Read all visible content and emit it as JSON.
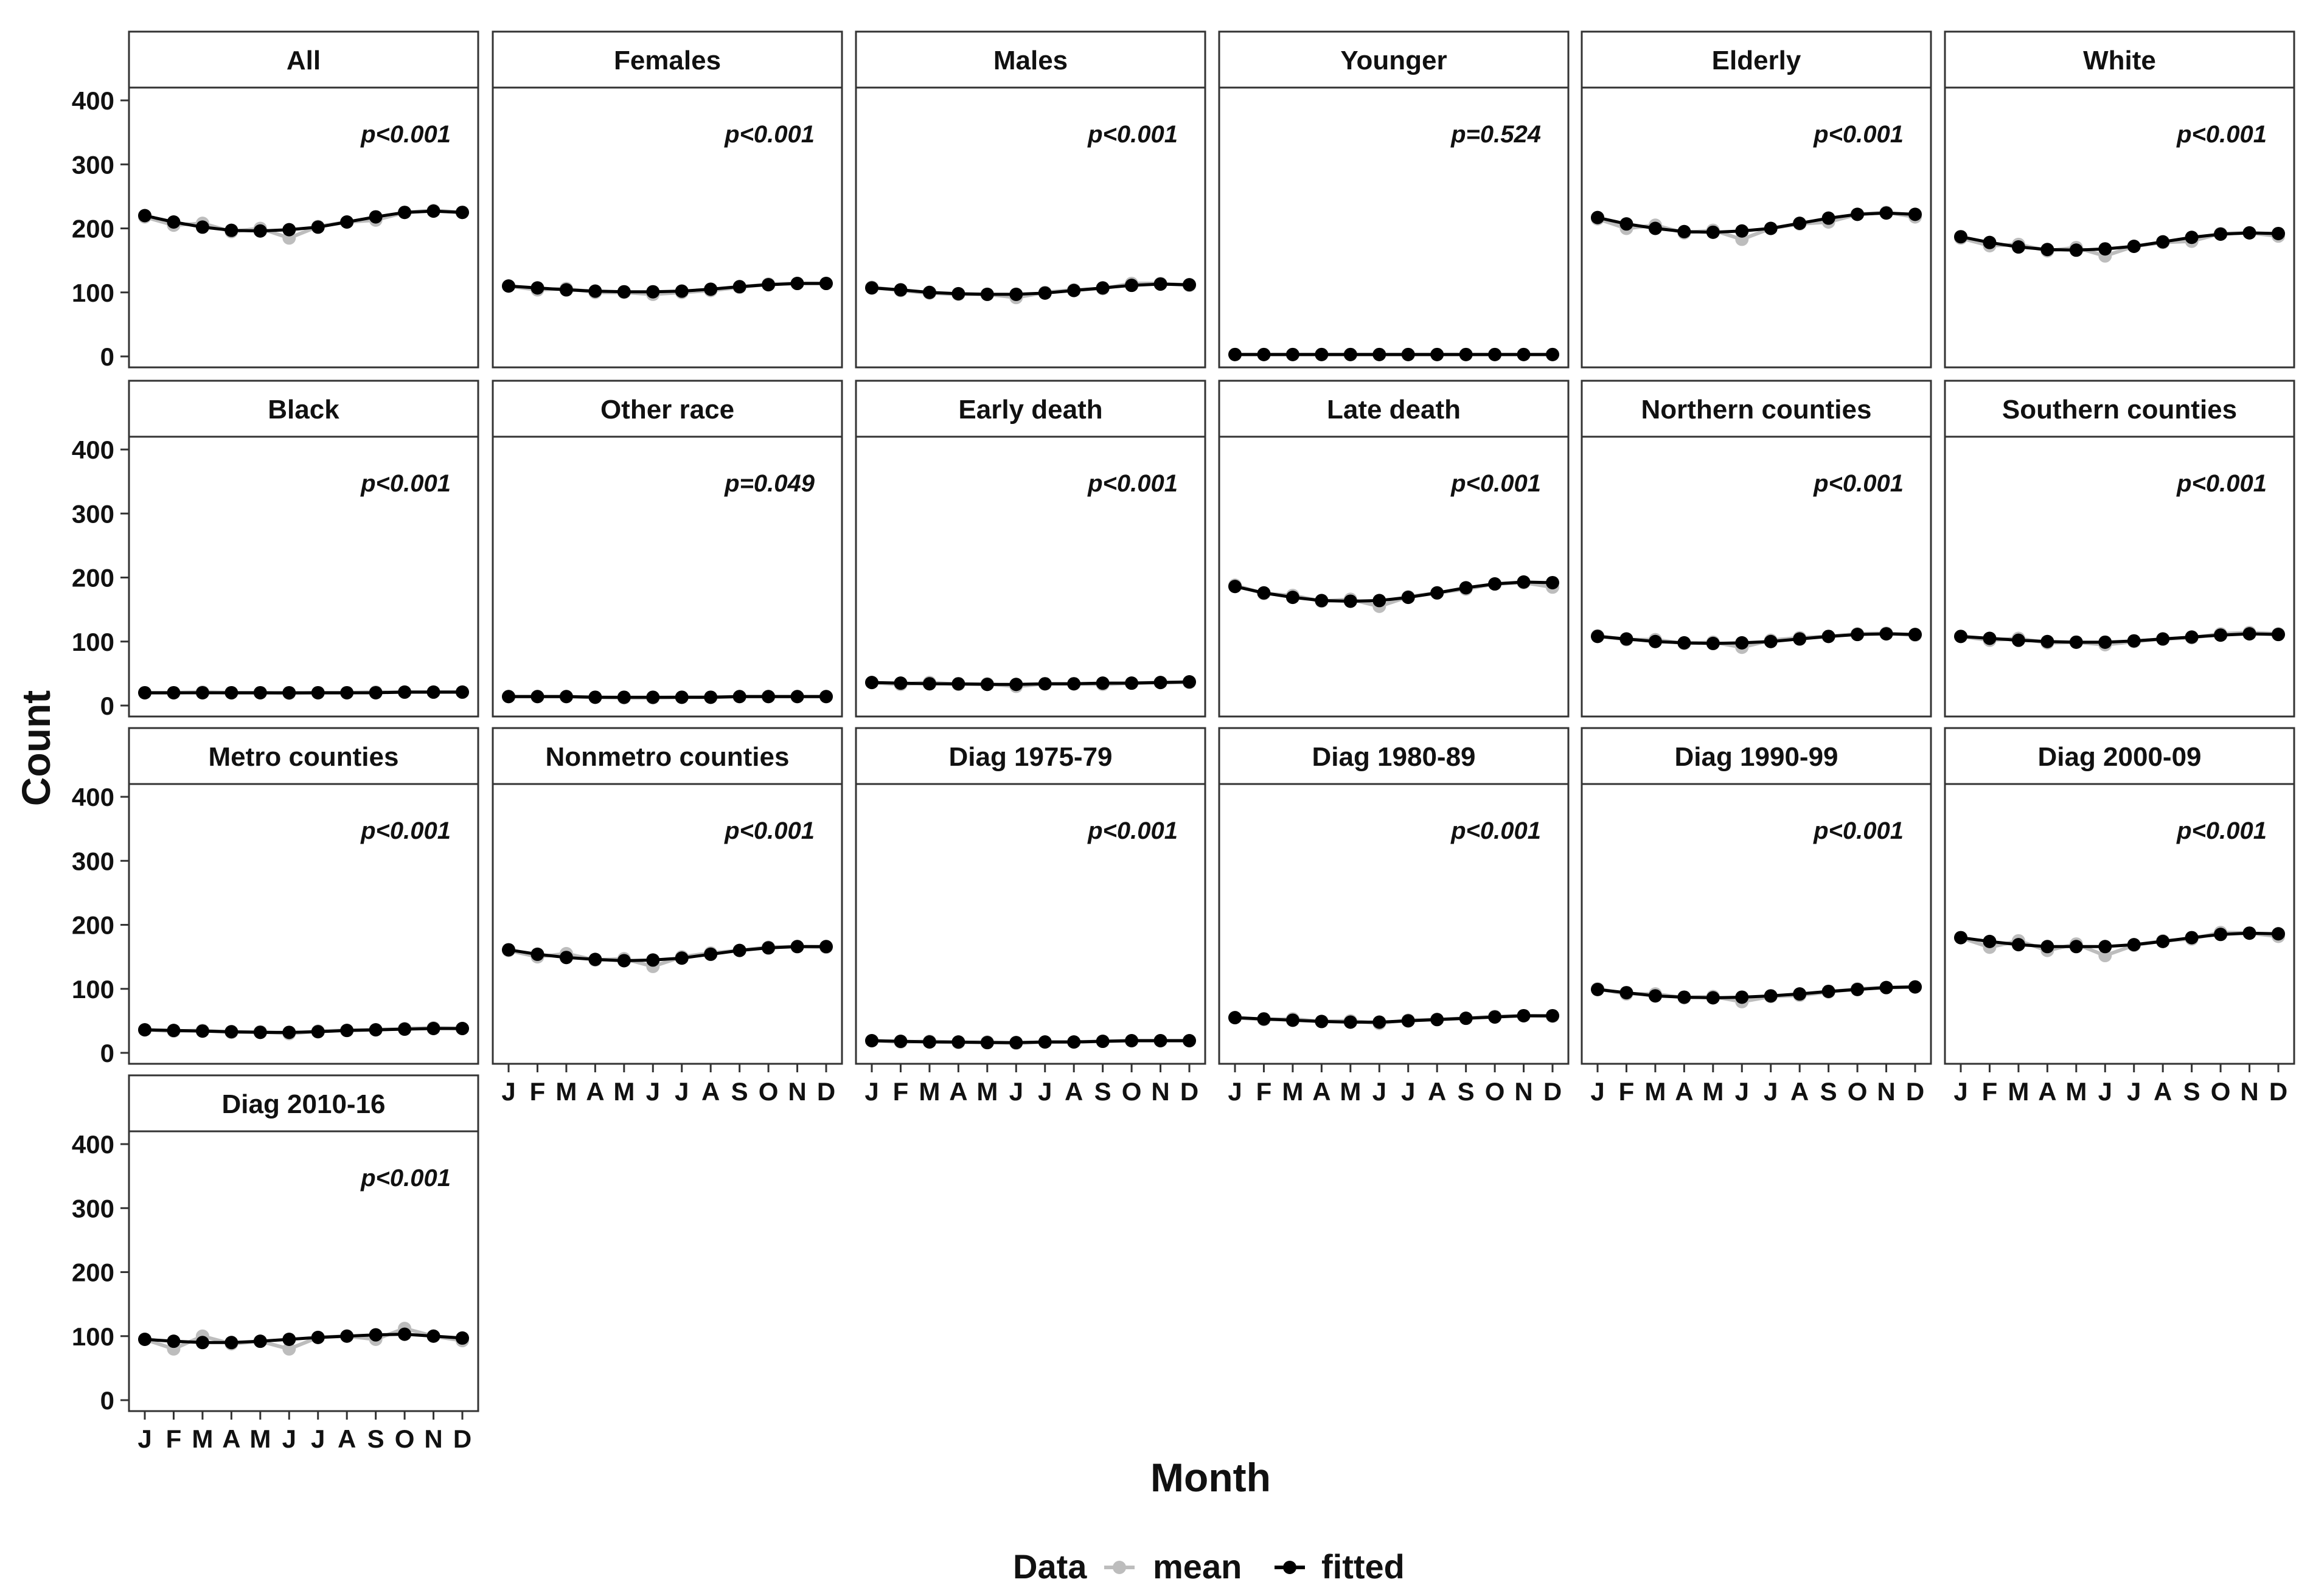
{
  "chart_data": {
    "type": "line",
    "xlabel": "Month",
    "ylabel": "Count",
    "ylim": [
      0,
      420
    ],
    "y_ticks": [
      0,
      100,
      200,
      300,
      400
    ],
    "x_ticks": [
      "J",
      "F",
      "M",
      "A",
      "M",
      "J",
      "J",
      "A",
      "S",
      "O",
      "N",
      "D"
    ],
    "grid": false,
    "legend": {
      "title": "Data",
      "placement": "bottom",
      "entries": [
        {
          "name": "mean",
          "color": "#bdbdbd"
        },
        {
          "name": "fitted",
          "color": "#000000"
        }
      ]
    },
    "panels": [
      {
        "title": "All",
        "p": "p<0.001",
        "mean": [
          218,
          205,
          208,
          195,
          200,
          185,
          203,
          210,
          213,
          225,
          228,
          225
        ],
        "fitted": [
          220,
          210,
          202,
          197,
          196,
          198,
          202,
          210,
          218,
          225,
          227,
          225
        ]
      },
      {
        "title": "Females",
        "p": "p<0.001",
        "mean": [
          110,
          104,
          106,
          100,
          100,
          97,
          100,
          103,
          108,
          113,
          114,
          114
        ],
        "fitted": [
          110,
          107,
          104,
          102,
          101,
          101,
          102,
          105,
          109,
          112,
          114,
          114
        ]
      },
      {
        "title": "Males",
        "p": "p<0.001",
        "mean": [
          108,
          103,
          99,
          97,
          97,
          92,
          100,
          104,
          106,
          114,
          114,
          111
        ],
        "fitted": [
          107,
          104,
          100,
          98,
          97,
          97,
          99,
          103,
          107,
          111,
          113,
          112
        ]
      },
      {
        "title": "Younger",
        "p": "p=0.524",
        "mean": [
          3,
          3,
          3,
          3,
          3,
          3,
          3,
          3,
          3,
          3,
          3,
          3
        ],
        "fitted": [
          3,
          3,
          3,
          3,
          3,
          3,
          3,
          3,
          3,
          3,
          3,
          3
        ]
      },
      {
        "title": "Elderly",
        "p": "p<0.001",
        "mean": [
          215,
          200,
          205,
          193,
          197,
          183,
          200,
          207,
          210,
          222,
          225,
          218
        ],
        "fitted": [
          217,
          207,
          200,
          195,
          194,
          196,
          200,
          208,
          216,
          222,
          224,
          222
        ]
      },
      {
        "title": "White",
        "p": "p<0.001",
        "mean": [
          185,
          173,
          175,
          165,
          170,
          157,
          172,
          178,
          180,
          192,
          193,
          188
        ],
        "fitted": [
          187,
          178,
          171,
          167,
          166,
          168,
          172,
          179,
          186,
          191,
          193,
          192
        ]
      },
      {
        "title": "Black",
        "p": "p<0.001",
        "mean": [
          20,
          20,
          21,
          20,
          20,
          19,
          20,
          20,
          21,
          21,
          21,
          21
        ],
        "fitted": [
          20,
          20,
          20,
          20,
          20,
          20,
          20,
          20,
          20,
          21,
          21,
          21
        ]
      },
      {
        "title": "Other race",
        "p": "p=0.049",
        "mean": [
          14,
          14,
          14,
          13,
          12,
          12,
          13,
          13,
          14,
          14,
          14,
          14
        ],
        "fitted": [
          14,
          14,
          14,
          13,
          13,
          13,
          13,
          13,
          14,
          14,
          14,
          14
        ]
      },
      {
        "title": "Early death",
        "p": "p<0.001",
        "mean": [
          36,
          33,
          36,
          33,
          34,
          30,
          34,
          34,
          33,
          35,
          36,
          36
        ],
        "fitted": [
          36,
          35,
          34,
          34,
          33,
          33,
          34,
          34,
          35,
          35,
          36,
          37
        ]
      },
      {
        "title": "Late death",
        "p": "p<0.001",
        "mean": [
          188,
          175,
          172,
          163,
          166,
          155,
          170,
          176,
          182,
          190,
          192,
          185
        ],
        "fitted": [
          186,
          176,
          169,
          164,
          163,
          164,
          169,
          176,
          184,
          190,
          193,
          192
        ]
      },
      {
        "title": "Northern counties",
        "p": "p<0.001",
        "mean": [
          109,
          103,
          103,
          97,
          99,
          91,
          102,
          106,
          108,
          112,
          113,
          110
        ],
        "fitted": [
          108,
          104,
          100,
          98,
          97,
          98,
          100,
          104,
          108,
          111,
          112,
          111
        ]
      },
      {
        "title": "Southern counties",
        "p": "p<0.001",
        "mean": [
          108,
          102,
          105,
          98,
          99,
          95,
          100,
          104,
          106,
          112,
          114,
          112
        ],
        "fitted": [
          108,
          105,
          102,
          100,
          99,
          99,
          101,
          104,
          107,
          110,
          112,
          111
        ]
      },
      {
        "title": "Metro counties",
        "p": "p<0.001",
        "mean": [
          36,
          34,
          35,
          32,
          33,
          30,
          34,
          35,
          36,
          38,
          39,
          38
        ],
        "fitted": [
          36,
          35,
          34,
          33,
          32,
          32,
          33,
          35,
          36,
          37,
          38,
          38
        ]
      },
      {
        "title": "Nonmetro counties",
        "p": "p<0.001",
        "mean": [
          160,
          150,
          155,
          145,
          147,
          135,
          150,
          156,
          160,
          165,
          166,
          165
        ],
        "fitted": [
          161,
          154,
          149,
          146,
          144,
          145,
          148,
          154,
          160,
          164,
          166,
          166
        ]
      },
      {
        "title": "Diag 1975-79",
        "p": "p<0.001",
        "mean": [
          19,
          17,
          18,
          16,
          17,
          15,
          17,
          17,
          18,
          19,
          19,
          19
        ],
        "fitted": [
          19,
          18,
          17,
          17,
          16,
          16,
          17,
          17,
          18,
          19,
          19,
          19
        ]
      },
      {
        "title": "Diag 1980-89",
        "p": "p<0.001",
        "mean": [
          55,
          52,
          53,
          49,
          50,
          46,
          51,
          52,
          54,
          57,
          58,
          57
        ],
        "fitted": [
          55,
          53,
          51,
          49,
          48,
          48,
          50,
          52,
          54,
          56,
          58,
          58
        ]
      },
      {
        "title": "Diag 1990-99",
        "p": "p<0.001",
        "mean": [
          100,
          92,
          92,
          86,
          88,
          80,
          88,
          90,
          95,
          100,
          102,
          103
        ],
        "fitted": [
          99,
          94,
          89,
          87,
          86,
          87,
          89,
          92,
          96,
          99,
          102,
          103
        ]
      },
      {
        "title": "Diag 2000-09",
        "p": "p<0.001",
        "mean": [
          180,
          165,
          175,
          160,
          170,
          152,
          168,
          175,
          178,
          188,
          187,
          182
        ],
        "fitted": [
          180,
          174,
          169,
          166,
          166,
          166,
          169,
          174,
          180,
          185,
          187,
          186
        ]
      },
      {
        "title": "Diag 2010-16",
        "p": "p<0.001",
        "mean": [
          95,
          80,
          100,
          88,
          92,
          80,
          98,
          100,
          95,
          112,
          100,
          93
        ],
        "fitted": [
          95,
          92,
          90,
          90,
          92,
          95,
          98,
          100,
          102,
          103,
          100,
          97
        ]
      }
    ]
  }
}
